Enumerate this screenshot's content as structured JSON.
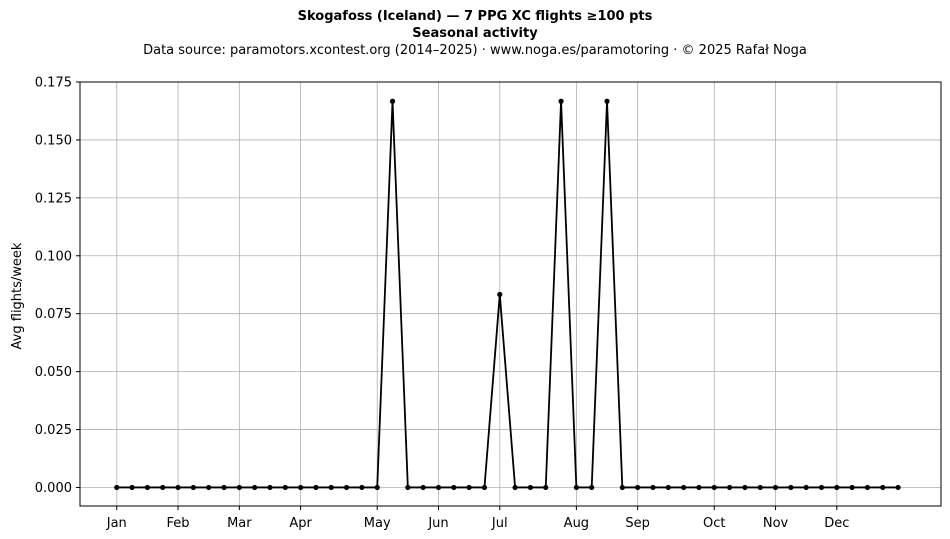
{
  "chart_data": {
    "type": "line",
    "title": "Skogafoss (Iceland)  —  7 PPG XC flights ≥100 pts",
    "subtitle": "Seasonal activity",
    "source_line": "Data source: paramotors.xcontest.org (2014–2025)  ·  www.noga.es/paramotoring  ·  © 2025 Rafał Noga",
    "xlabel": "",
    "ylabel": "Avg flights/week",
    "ylim": [
      -0.008,
      0.175
    ],
    "xlim": [
      -2.4,
      53.8
    ],
    "grid": true,
    "x_ticks": [
      {
        "label": "Jan",
        "week": 0
      },
      {
        "label": "Feb",
        "week": 4
      },
      {
        "label": "Mar",
        "week": 8
      },
      {
        "label": "Apr",
        "week": 12
      },
      {
        "label": "May",
        "week": 17
      },
      {
        "label": "Jun",
        "week": 21
      },
      {
        "label": "Jul",
        "week": 25
      },
      {
        "label": "Aug",
        "week": 30
      },
      {
        "label": "Sep",
        "week": 34
      },
      {
        "label": "Oct",
        "week": 39
      },
      {
        "label": "Nov",
        "week": 43
      },
      {
        "label": "Dec",
        "week": 47
      }
    ],
    "y_ticks": [
      "0.000",
      "0.025",
      "0.050",
      "0.075",
      "0.100",
      "0.125",
      "0.150",
      "0.175"
    ],
    "series": [
      {
        "color": "#000000",
        "x": [
          0,
          1,
          2,
          3,
          4,
          5,
          6,
          7,
          8,
          9,
          10,
          11,
          12,
          13,
          14,
          15,
          16,
          17,
          18,
          19,
          20,
          21,
          22,
          23,
          24,
          25,
          26,
          27,
          28,
          29,
          30,
          31,
          32,
          33,
          34,
          35,
          36,
          37,
          38,
          39,
          40,
          41,
          42,
          43,
          44,
          45,
          46,
          47,
          48,
          49,
          50,
          51
        ],
        "values": [
          0,
          0,
          0,
          0,
          0,
          0,
          0,
          0,
          0,
          0,
          0,
          0,
          0,
          0,
          0,
          0,
          0,
          0,
          0.1667,
          0,
          0,
          0,
          0,
          0,
          0,
          0.0833,
          0,
          0,
          0,
          0.1667,
          0,
          0,
          0.1667,
          0,
          0,
          0,
          0,
          0,
          0,
          0,
          0,
          0,
          0,
          0,
          0,
          0,
          0,
          0,
          0,
          0,
          0,
          0
        ]
      }
    ]
  }
}
